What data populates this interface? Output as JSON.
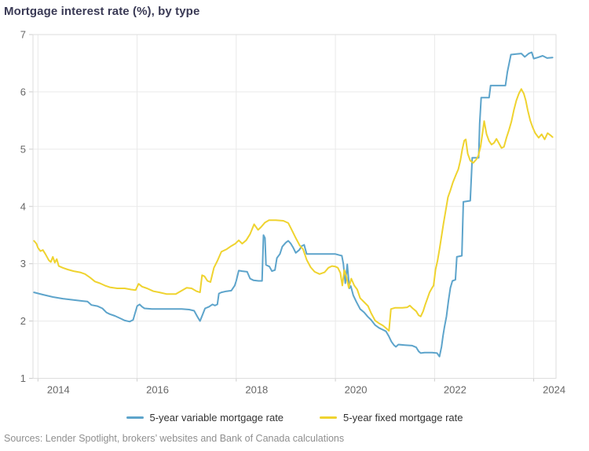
{
  "title": "Mortgage interest rate (%), by type",
  "source": "Sources: Lender Spotlight, brokers’ websites and Bank of Canada calculations",
  "chart_data": {
    "type": "line",
    "title": "Mortgage interest rate (%), by type",
    "xlabel": "",
    "ylabel": "",
    "x_axis": {
      "range": [
        2013.9,
        2024.45
      ],
      "ticks": [
        2014,
        2016,
        2018,
        2020,
        2022,
        2024
      ]
    },
    "y_axis": {
      "range": [
        1,
        7
      ],
      "ticks": [
        1,
        2,
        3,
        4,
        5,
        6,
        7
      ]
    },
    "grid": true,
    "legend_position": "bottom",
    "series": [
      {
        "name": "5-year variable mortgage rate",
        "color": "#5da4cb",
        "points": [
          [
            2013.92,
            2.5
          ],
          [
            2014.1,
            2.46
          ],
          [
            2014.3,
            2.42
          ],
          [
            2014.5,
            2.39
          ],
          [
            2014.7,
            2.37
          ],
          [
            2014.9,
            2.35
          ],
          [
            2015.0,
            2.34
          ],
          [
            2015.08,
            2.28
          ],
          [
            2015.2,
            2.26
          ],
          [
            2015.3,
            2.22
          ],
          [
            2015.38,
            2.15
          ],
          [
            2015.45,
            2.12
          ],
          [
            2015.55,
            2.09
          ],
          [
            2015.65,
            2.05
          ],
          [
            2015.75,
            2.01
          ],
          [
            2015.85,
            1.99
          ],
          [
            2015.92,
            2.02
          ],
          [
            2016.0,
            2.26
          ],
          [
            2016.05,
            2.29
          ],
          [
            2016.1,
            2.25
          ],
          [
            2016.15,
            2.22
          ],
          [
            2016.3,
            2.21
          ],
          [
            2016.5,
            2.21
          ],
          [
            2016.7,
            2.21
          ],
          [
            2016.9,
            2.21
          ],
          [
            2017.05,
            2.2
          ],
          [
            2017.15,
            2.18
          ],
          [
            2017.22,
            2.07
          ],
          [
            2017.27,
            2.0
          ],
          [
            2017.32,
            2.11
          ],
          [
            2017.37,
            2.22
          ],
          [
            2017.45,
            2.25
          ],
          [
            2017.52,
            2.29
          ],
          [
            2017.57,
            2.27
          ],
          [
            2017.62,
            2.29
          ],
          [
            2017.65,
            2.48
          ],
          [
            2017.7,
            2.5
          ],
          [
            2017.8,
            2.52
          ],
          [
            2017.9,
            2.53
          ],
          [
            2017.97,
            2.62
          ],
          [
            2018.0,
            2.7
          ],
          [
            2018.05,
            2.88
          ],
          [
            2018.12,
            2.87
          ],
          [
            2018.22,
            2.86
          ],
          [
            2018.28,
            2.74
          ],
          [
            2018.35,
            2.71
          ],
          [
            2018.45,
            2.7
          ],
          [
            2018.52,
            2.7
          ],
          [
            2018.55,
            3.5
          ],
          [
            2018.58,
            3.45
          ],
          [
            2018.6,
            2.98
          ],
          [
            2018.67,
            2.95
          ],
          [
            2018.72,
            2.87
          ],
          [
            2018.78,
            2.89
          ],
          [
            2018.82,
            3.1
          ],
          [
            2018.88,
            3.17
          ],
          [
            2018.93,
            3.3
          ],
          [
            2019.0,
            3.37
          ],
          [
            2019.05,
            3.4
          ],
          [
            2019.1,
            3.35
          ],
          [
            2019.15,
            3.28
          ],
          [
            2019.2,
            3.19
          ],
          [
            2019.27,
            3.24
          ],
          [
            2019.32,
            3.31
          ],
          [
            2019.37,
            3.33
          ],
          [
            2019.42,
            3.17
          ],
          [
            2019.6,
            3.17
          ],
          [
            2019.8,
            3.17
          ],
          [
            2020.0,
            3.17
          ],
          [
            2020.08,
            3.15
          ],
          [
            2020.13,
            3.14
          ],
          [
            2020.16,
            3.0
          ],
          [
            2020.2,
            2.66
          ],
          [
            2020.24,
            2.99
          ],
          [
            2020.28,
            2.57
          ],
          [
            2020.31,
            2.61
          ],
          [
            2020.36,
            2.45
          ],
          [
            2020.42,
            2.34
          ],
          [
            2020.5,
            2.21
          ],
          [
            2020.58,
            2.15
          ],
          [
            2020.65,
            2.08
          ],
          [
            2020.72,
            2.02
          ],
          [
            2020.8,
            1.93
          ],
          [
            2020.88,
            1.88
          ],
          [
            2020.95,
            1.85
          ],
          [
            2021.02,
            1.82
          ],
          [
            2021.08,
            1.73
          ],
          [
            2021.13,
            1.64
          ],
          [
            2021.18,
            1.58
          ],
          [
            2021.22,
            1.55
          ],
          [
            2021.27,
            1.59
          ],
          [
            2021.4,
            1.58
          ],
          [
            2021.55,
            1.57
          ],
          [
            2021.63,
            1.54
          ],
          [
            2021.68,
            1.47
          ],
          [
            2021.72,
            1.44
          ],
          [
            2021.8,
            1.45
          ],
          [
            2021.95,
            1.45
          ],
          [
            2022.05,
            1.44
          ],
          [
            2022.1,
            1.38
          ],
          [
            2022.14,
            1.55
          ],
          [
            2022.17,
            1.74
          ],
          [
            2022.2,
            1.9
          ],
          [
            2022.24,
            2.08
          ],
          [
            2022.28,
            2.35
          ],
          [
            2022.32,
            2.58
          ],
          [
            2022.36,
            2.7
          ],
          [
            2022.42,
            2.72
          ],
          [
            2022.45,
            3.12
          ],
          [
            2022.55,
            3.14
          ],
          [
            2022.58,
            4.08
          ],
          [
            2022.72,
            4.1
          ],
          [
            2022.76,
            4.85
          ],
          [
            2022.89,
            4.85
          ],
          [
            2022.91,
            5.45
          ],
          [
            2022.94,
            5.9
          ],
          [
            2023.1,
            5.9
          ],
          [
            2023.13,
            6.11
          ],
          [
            2023.43,
            6.11
          ],
          [
            2023.47,
            6.35
          ],
          [
            2023.54,
            6.65
          ],
          [
            2023.65,
            6.66
          ],
          [
            2023.75,
            6.67
          ],
          [
            2023.82,
            6.61
          ],
          [
            2023.9,
            6.67
          ],
          [
            2023.96,
            6.69
          ],
          [
            2024.0,
            6.58
          ],
          [
            2024.08,
            6.6
          ],
          [
            2024.18,
            6.63
          ],
          [
            2024.27,
            6.59
          ],
          [
            2024.38,
            6.6
          ]
        ]
      },
      {
        "name": "5-year fixed mortgage rate",
        "color": "#efd32f",
        "points": [
          [
            2013.92,
            3.4
          ],
          [
            2013.97,
            3.35
          ],
          [
            2014.0,
            3.28
          ],
          [
            2014.05,
            3.22
          ],
          [
            2014.1,
            3.24
          ],
          [
            2014.15,
            3.17
          ],
          [
            2014.22,
            3.06
          ],
          [
            2014.26,
            3.03
          ],
          [
            2014.3,
            3.12
          ],
          [
            2014.34,
            3.02
          ],
          [
            2014.38,
            3.08
          ],
          [
            2014.42,
            2.96
          ],
          [
            2014.5,
            2.93
          ],
          [
            2014.6,
            2.9
          ],
          [
            2014.72,
            2.87
          ],
          [
            2014.85,
            2.85
          ],
          [
            2014.95,
            2.82
          ],
          [
            2015.05,
            2.76
          ],
          [
            2015.15,
            2.69
          ],
          [
            2015.25,
            2.66
          ],
          [
            2015.35,
            2.62
          ],
          [
            2015.45,
            2.59
          ],
          [
            2015.6,
            2.57
          ],
          [
            2015.75,
            2.57
          ],
          [
            2015.88,
            2.55
          ],
          [
            2015.97,
            2.54
          ],
          [
            2016.03,
            2.65
          ],
          [
            2016.1,
            2.6
          ],
          [
            2016.2,
            2.57
          ],
          [
            2016.33,
            2.52
          ],
          [
            2016.45,
            2.5
          ],
          [
            2016.6,
            2.47
          ],
          [
            2016.78,
            2.47
          ],
          [
            2016.9,
            2.53
          ],
          [
            2017.0,
            2.58
          ],
          [
            2017.1,
            2.57
          ],
          [
            2017.2,
            2.52
          ],
          [
            2017.27,
            2.5
          ],
          [
            2017.31,
            2.8
          ],
          [
            2017.36,
            2.78
          ],
          [
            2017.42,
            2.7
          ],
          [
            2017.48,
            2.68
          ],
          [
            2017.55,
            2.93
          ],
          [
            2017.62,
            3.05
          ],
          [
            2017.7,
            3.21
          ],
          [
            2017.8,
            3.25
          ],
          [
            2017.9,
            3.31
          ],
          [
            2017.98,
            3.35
          ],
          [
            2018.05,
            3.41
          ],
          [
            2018.12,
            3.35
          ],
          [
            2018.2,
            3.41
          ],
          [
            2018.28,
            3.52
          ],
          [
            2018.36,
            3.69
          ],
          [
            2018.44,
            3.59
          ],
          [
            2018.5,
            3.64
          ],
          [
            2018.58,
            3.72
          ],
          [
            2018.66,
            3.76
          ],
          [
            2018.8,
            3.76
          ],
          [
            2018.95,
            3.75
          ],
          [
            2019.05,
            3.71
          ],
          [
            2019.12,
            3.59
          ],
          [
            2019.2,
            3.45
          ],
          [
            2019.28,
            3.32
          ],
          [
            2019.35,
            3.25
          ],
          [
            2019.42,
            3.07
          ],
          [
            2019.5,
            2.94
          ],
          [
            2019.58,
            2.86
          ],
          [
            2019.68,
            2.82
          ],
          [
            2019.78,
            2.85
          ],
          [
            2019.86,
            2.93
          ],
          [
            2019.93,
            2.96
          ],
          [
            2020.0,
            2.95
          ],
          [
            2020.05,
            2.93
          ],
          [
            2020.1,
            2.84
          ],
          [
            2020.14,
            2.62
          ],
          [
            2020.18,
            2.89
          ],
          [
            2020.22,
            2.78
          ],
          [
            2020.27,
            2.58
          ],
          [
            2020.32,
            2.74
          ],
          [
            2020.38,
            2.62
          ],
          [
            2020.44,
            2.55
          ],
          [
            2020.5,
            2.4
          ],
          [
            2020.58,
            2.33
          ],
          [
            2020.66,
            2.26
          ],
          [
            2020.72,
            2.14
          ],
          [
            2020.8,
            2.01
          ],
          [
            2020.88,
            1.96
          ],
          [
            2020.96,
            1.92
          ],
          [
            2021.03,
            1.87
          ],
          [
            2021.08,
            1.83
          ],
          [
            2021.12,
            2.21
          ],
          [
            2021.2,
            2.23
          ],
          [
            2021.35,
            2.23
          ],
          [
            2021.45,
            2.24
          ],
          [
            2021.5,
            2.27
          ],
          [
            2021.56,
            2.22
          ],
          [
            2021.63,
            2.17
          ],
          [
            2021.68,
            2.1
          ],
          [
            2021.72,
            2.08
          ],
          [
            2021.77,
            2.17
          ],
          [
            2021.81,
            2.28
          ],
          [
            2021.85,
            2.38
          ],
          [
            2021.9,
            2.5
          ],
          [
            2021.95,
            2.58
          ],
          [
            2021.98,
            2.62
          ],
          [
            2022.02,
            2.9
          ],
          [
            2022.06,
            3.05
          ],
          [
            2022.1,
            3.25
          ],
          [
            2022.14,
            3.48
          ],
          [
            2022.18,
            3.7
          ],
          [
            2022.22,
            3.9
          ],
          [
            2022.27,
            4.16
          ],
          [
            2022.32,
            4.28
          ],
          [
            2022.37,
            4.42
          ],
          [
            2022.43,
            4.55
          ],
          [
            2022.48,
            4.65
          ],
          [
            2022.52,
            4.8
          ],
          [
            2022.56,
            5.0
          ],
          [
            2022.6,
            5.15
          ],
          [
            2022.63,
            5.17
          ],
          [
            2022.67,
            4.92
          ],
          [
            2022.72,
            4.8
          ],
          [
            2022.78,
            4.76
          ],
          [
            2022.84,
            4.82
          ],
          [
            2022.88,
            4.88
          ],
          [
            2022.93,
            5.05
          ],
          [
            2022.97,
            5.3
          ],
          [
            2023.0,
            5.49
          ],
          [
            2023.05,
            5.26
          ],
          [
            2023.1,
            5.14
          ],
          [
            2023.15,
            5.08
          ],
          [
            2023.2,
            5.11
          ],
          [
            2023.25,
            5.18
          ],
          [
            2023.3,
            5.1
          ],
          [
            2023.35,
            5.02
          ],
          [
            2023.4,
            5.04
          ],
          [
            2023.45,
            5.2
          ],
          [
            2023.5,
            5.33
          ],
          [
            2023.55,
            5.48
          ],
          [
            2023.6,
            5.68
          ],
          [
            2023.65,
            5.85
          ],
          [
            2023.7,
            5.97
          ],
          [
            2023.75,
            6.05
          ],
          [
            2023.8,
            5.97
          ],
          [
            2023.84,
            5.85
          ],
          [
            2023.88,
            5.68
          ],
          [
            2023.93,
            5.5
          ],
          [
            2023.98,
            5.38
          ],
          [
            2024.03,
            5.28
          ],
          [
            2024.1,
            5.2
          ],
          [
            2024.16,
            5.26
          ],
          [
            2024.22,
            5.17
          ],
          [
            2024.28,
            5.28
          ],
          [
            2024.34,
            5.24
          ],
          [
            2024.38,
            5.21
          ]
        ]
      }
    ]
  }
}
